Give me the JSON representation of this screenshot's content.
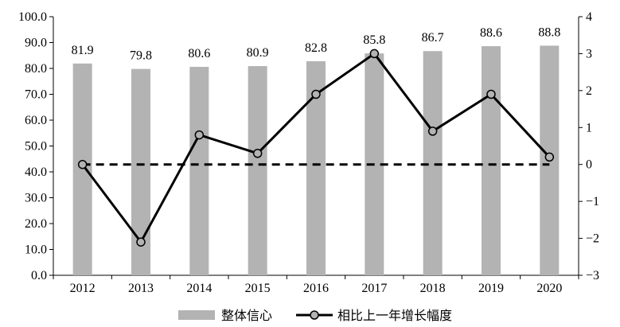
{
  "chart_data": {
    "type": "bar+line",
    "categories": [
      "2012",
      "2013",
      "2014",
      "2015",
      "2016",
      "2017",
      "2018",
      "2019",
      "2020"
    ],
    "series": [
      {
        "name": "整体信心",
        "type": "bar",
        "axis": "left",
        "values": [
          81.9,
          79.8,
          80.6,
          80.9,
          82.8,
          85.8,
          86.7,
          88.6,
          88.8
        ],
        "data_labels": [
          "81.9",
          "79.8",
          "80.6",
          "80.9",
          "82.8",
          "85.8",
          "86.7",
          "88.6",
          "88.8"
        ],
        "color": "#b3b3b3"
      },
      {
        "name": "相比上一年增长幅度",
        "type": "line",
        "axis": "right",
        "values": [
          0,
          -2.1,
          0.8,
          0.3,
          1.9,
          3.0,
          0.9,
          1.9,
          0.2
        ],
        "color": "#000000",
        "marker_fill": "#b3b3b3"
      }
    ],
    "reference_line": {
      "axis": "right",
      "value": 0,
      "style": "dashed",
      "from": "2012",
      "to": "2020"
    },
    "y_left": {
      "min": 0,
      "max": 100,
      "ticks": [
        "0.0",
        "10.0",
        "20.0",
        "30.0",
        "40.0",
        "50.0",
        "60.0",
        "70.0",
        "80.0",
        "90.0",
        "100.0"
      ]
    },
    "y_right": {
      "min": -3,
      "max": 4,
      "ticks": [
        "−3",
        "−2",
        "−1",
        "0",
        "1",
        "2",
        "3",
        "4"
      ]
    },
    "grid": false,
    "legend_position": "bottom"
  }
}
